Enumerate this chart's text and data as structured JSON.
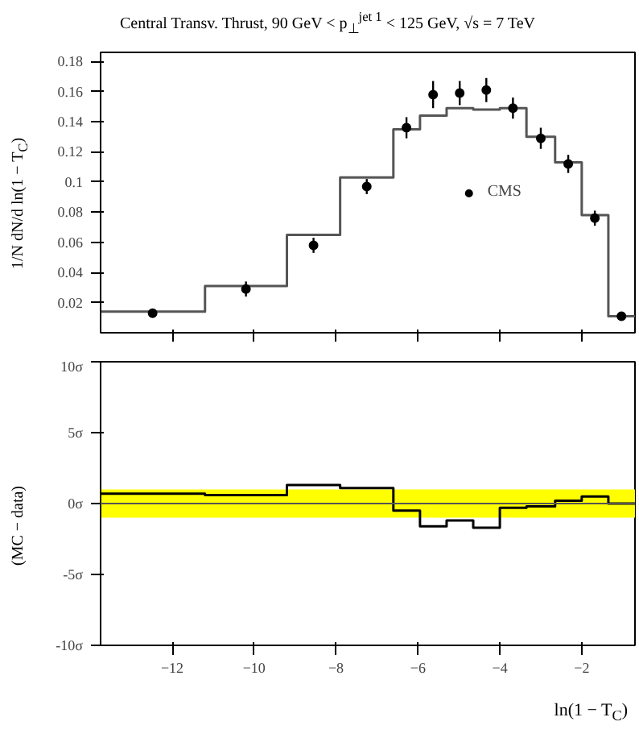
{
  "chart_data": [
    {
      "type": "histogram",
      "title": "Central Transv. Thrust, 90 GeV < p$_{⊥}$$^{jet 1}$ < 125 GeV, √s = 7 TeV",
      "ylabel": "1/N dN/d ln(1 − T$_{C}$)",
      "bins": [
        -13.75,
        -11.2,
        -9.2,
        -7.9,
        -6.6,
        -5.95,
        -5.3,
        -4.65,
        -4.0,
        -3.35,
        -2.65,
        -2.0,
        -1.35,
        -0.7
      ],
      "series": [
        {
          "color": "#555555",
          "values": [
            0.014,
            0.031,
            0.065,
            0.103,
            0.135,
            0.144,
            0.149,
            0.148,
            0.149,
            0.13,
            0.113,
            0.078,
            0.011
          ]
        },
        {
          "type": "scatter",
          "name": "CMS",
          "color": "#000000",
          "x": [
            -12.48,
            -10.2,
            -8.55,
            -7.25,
            -6.28,
            -5.63,
            -4.98,
            -4.33,
            -3.68,
            -3.0,
            -2.33,
            -1.68,
            -1.03
          ],
          "values": [
            0.013,
            0.029,
            0.058,
            0.097,
            0.136,
            0.158,
            0.159,
            0.161,
            0.149,
            0.129,
            0.112,
            0.076,
            0.011
          ],
          "errors": [
            0.001,
            0.005,
            0.005,
            0.005,
            0.007,
            0.009,
            0.008,
            0.008,
            0.007,
            0.007,
            0.006,
            0.005,
            0.001
          ]
        }
      ],
      "xlim": [
        -13.75,
        -0.7
      ],
      "ylim": [
        0,
        0.186
      ],
      "xticks": [
        -12,
        -10,
        -8,
        -6,
        -4,
        -2
      ],
      "yticks": [
        0.02,
        0.04,
        0.06,
        0.08,
        0.1,
        0.12,
        0.14,
        0.16,
        0.18
      ],
      "tick_labels": "y",
      "legend": "right",
      "marker": "circle",
      "grid": false
    },
    {
      "type": "histogram",
      "xlabel": "ln(1 − T$_{C}$)",
      "ylabel": "(MC − data)",
      "bins": [
        -13.75,
        -11.2,
        -9.2,
        -7.9,
        -6.6,
        -5.95,
        -5.3,
        -4.65,
        -4.0,
        -3.35,
        -2.65,
        -2.0,
        -1.35,
        -0.7
      ],
      "series": [
        {
          "color": "#000000",
          "values": [
            0.7,
            0.6,
            1.3,
            1.1,
            -0.5,
            -1.6,
            -1.2,
            -1.7,
            -0.3,
            -0.2,
            0.2,
            0.5,
            0.0
          ]
        }
      ],
      "xlim": [
        -13.75,
        -0.7
      ],
      "ylim": [
        -10,
        10
      ],
      "xticks": [
        -12,
        -10,
        -8,
        -6,
        -4,
        -2
      ],
      "yticks": [
        {
          "value": -10,
          "label": "-10σ"
        },
        {
          "value": -5,
          "label": "-5σ"
        },
        {
          "value": 0,
          "label": "0σ"
        },
        {
          "value": 5,
          "label": "5σ"
        },
        {
          "value": 10,
          "label": "10σ"
        }
      ],
      "bands": [
        {
          "axis": "y",
          "from": -1,
          "to": 1,
          "color": "#ffff00"
        }
      ],
      "ref_lines": [
        {
          "axis": "y",
          "value": 0,
          "color": "#555555"
        }
      ],
      "grid": false
    }
  ]
}
